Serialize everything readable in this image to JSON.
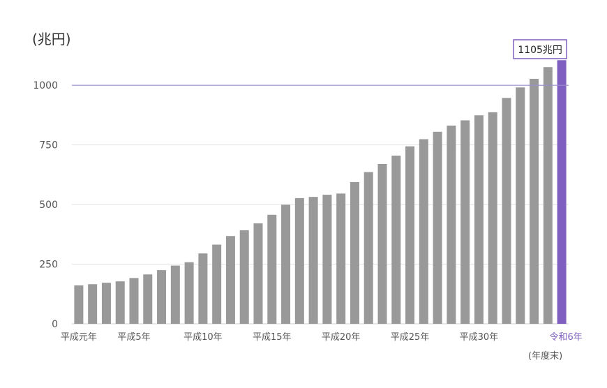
{
  "chart_data": {
    "type": "bar",
    "unit_label": "(兆円)",
    "period_note": "(年度末)",
    "highlight_callout": "1105兆円",
    "ylim": [
      0,
      1100
    ],
    "yticks": [
      0,
      250,
      500,
      750,
      1000
    ],
    "reference_line": 1000,
    "categories": [
      "平成元年",
      "平成2年",
      "平成3年",
      "平成4年",
      "平成5年",
      "平成6年",
      "平成7年",
      "平成8年",
      "平成9年",
      "平成10年",
      "平成11年",
      "平成12年",
      "平成13年",
      "平成14年",
      "平成15年",
      "平成16年",
      "平成17年",
      "平成18年",
      "平成19年",
      "平成20年",
      "平成21年",
      "平成22年",
      "平成23年",
      "平成24年",
      "平成25年",
      "平成26年",
      "平成27年",
      "平成28年",
      "平成29年",
      "平成30年",
      "令和元年",
      "令和2年",
      "令和3年",
      "令和4年",
      "令和5年",
      "令和6年"
    ],
    "shown_tick_labels": [
      "平成元年",
      "平成5年",
      "平成10年",
      "平成15年",
      "平成20年",
      "平成25年",
      "平成30年",
      "令和6年"
    ],
    "values": [
      161,
      166,
      172,
      178,
      192,
      207,
      225,
      244,
      258,
      295,
      332,
      368,
      392,
      421,
      457,
      499,
      527,
      532,
      541,
      546,
      594,
      636,
      670,
      705,
      744,
      774,
      805,
      831,
      853,
      874,
      887,
      947,
      991,
      1027,
      1076,
      1105
    ],
    "colors": {
      "bar": "#999999",
      "highlight": "#7f5fbf",
      "reference_line": "#9a8ccf",
      "grid": "#e2e2e2",
      "axis_text": "#555555"
    }
  }
}
